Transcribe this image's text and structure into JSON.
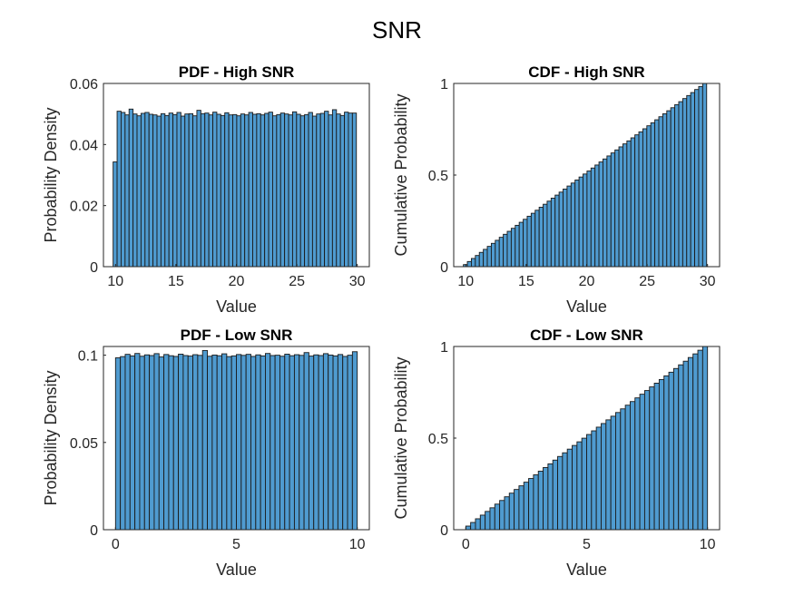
{
  "figure": {
    "title": "SNR"
  },
  "chart_data": [
    {
      "type": "bar",
      "title": "PDF - High SNR",
      "xlabel": "Value",
      "ylabel": "Probability Density",
      "xlim": [
        9,
        31
      ],
      "ylim": [
        0,
        0.06
      ],
      "xticks": [
        10,
        15,
        20,
        25,
        30
      ],
      "yticks": [
        0,
        0.02,
        0.04,
        0.06
      ],
      "ytick_labels": [
        "0",
        "0.02",
        "0.04",
        "0.06"
      ],
      "bin_start": 9.8,
      "bin_width": 0.33,
      "values": [
        0.0343,
        0.0509,
        0.0505,
        0.0497,
        0.0516,
        0.05,
        0.0494,
        0.0502,
        0.0505,
        0.0499,
        0.0497,
        0.0493,
        0.0501,
        0.0495,
        0.0503,
        0.0498,
        0.0505,
        0.0493,
        0.05,
        0.0501,
        0.0494,
        0.0512,
        0.0501,
        0.0503,
        0.0497,
        0.0506,
        0.0499,
        0.0495,
        0.0504,
        0.0497,
        0.0498,
        0.0494,
        0.05,
        0.0497,
        0.0505,
        0.0499,
        0.0501,
        0.0497,
        0.0502,
        0.0506,
        0.0494,
        0.0498,
        0.0503,
        0.05,
        0.0497,
        0.0507,
        0.0499,
        0.0494,
        0.0498,
        0.0505,
        0.0493,
        0.05,
        0.0502,
        0.0509,
        0.0497,
        0.0514,
        0.05,
        0.0495,
        0.0506,
        0.0503,
        0.0503
      ],
      "color": "#4f9bd0"
    },
    {
      "type": "bar",
      "title": "CDF - High SNR",
      "xlabel": "Value",
      "ylabel": "Cumulative Probability",
      "xlim": [
        9,
        31
      ],
      "ylim": [
        0,
        1
      ],
      "xticks": [
        10,
        15,
        20,
        25,
        30
      ],
      "yticks": [
        0,
        0.5,
        1
      ],
      "ytick_labels": [
        "0",
        "0.5",
        "1"
      ],
      "bin_start": 9.8,
      "bin_width": 0.33,
      "values": "cumulative from 0.0 to 1.0 over 61 bins",
      "color": "#4f9bd0"
    },
    {
      "type": "bar",
      "title": "PDF - Low SNR",
      "xlabel": "Value",
      "ylabel": "Probability Density",
      "xlim": [
        -0.5,
        10.5
      ],
      "ylim": [
        0,
        0.105
      ],
      "xticks": [
        0,
        5,
        10
      ],
      "yticks": [
        0,
        0.05,
        0.1
      ],
      "ytick_labels": [
        "0",
        "0.05",
        "0.1"
      ],
      "bin_start": 0,
      "bin_width": 0.2,
      "values": [
        0.0985,
        0.0992,
        0.1005,
        0.0996,
        0.101,
        0.0994,
        0.1002,
        0.0998,
        0.1009,
        0.099,
        0.1004,
        0.0997,
        0.0993,
        0.1006,
        0.0998,
        0.0995,
        0.1003,
        0.0999,
        0.1027,
        0.0994,
        0.1001,
        0.0997,
        0.1008,
        0.0992,
        0.0996,
        0.1004,
        0.0999,
        0.1005,
        0.0993,
        0.1002,
        0.0996,
        0.101,
        0.0998,
        0.1,
        0.0994,
        0.1006,
        0.0997,
        0.1003,
        0.0999,
        0.1015,
        0.0995,
        0.1002,
        0.0998,
        0.1009,
        0.1001,
        0.0996,
        0.1004,
        0.0993,
        0.1,
        0.102
      ],
      "color": "#4f9bd0"
    },
    {
      "type": "bar",
      "title": "CDF - Low SNR",
      "xlabel": "Value",
      "ylabel": "Cumulative Probability",
      "xlim": [
        -0.5,
        10.5
      ],
      "ylim": [
        0,
        1
      ],
      "xticks": [
        0,
        5,
        10
      ],
      "yticks": [
        0,
        0.5,
        1
      ],
      "ytick_labels": [
        "0",
        "0.5",
        "1"
      ],
      "bin_start": 0,
      "bin_width": 0.2,
      "values": "cumulative from 0.0 to 1.0 over 50 bins",
      "color": "#4f9bd0"
    }
  ]
}
